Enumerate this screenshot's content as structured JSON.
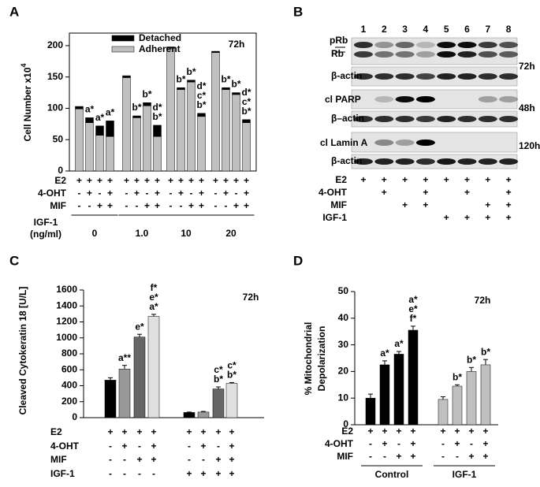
{
  "chart_data": [
    {
      "panel": "A",
      "type": "stacked-bar",
      "time": "72h",
      "y_label": "Cell Number x10",
      "y_label_sup": "4",
      "ylim": [
        0,
        220
      ],
      "yticks": [
        0,
        50,
        100,
        150,
        200
      ],
      "series": [
        {
          "name": "Detached",
          "color": "#000000",
          "values": [
            4,
            8,
            15,
            25,
            3,
            3,
            5,
            18,
            2,
            3,
            3,
            5,
            2,
            3,
            3,
            5
          ]
        },
        {
          "name": "Adherent",
          "color": "#c0c0c0",
          "values": [
            99,
            77,
            57,
            55,
            149,
            85,
            104,
            55,
            196,
            130,
            142,
            87,
            189,
            130,
            122,
            77
          ]
        }
      ],
      "bar_labels": [
        null,
        [
          "a*"
        ],
        [
          "a*"
        ],
        [
          "a*"
        ],
        null,
        [
          "b*"
        ],
        [
          "b*"
        ],
        [
          "d*",
          "b*"
        ],
        null,
        [
          "b*"
        ],
        [
          "b*"
        ],
        [
          "d*",
          "c*",
          "b*"
        ],
        null,
        [
          "b*"
        ],
        [
          "b*"
        ],
        [
          "d*",
          "c*",
          "b*"
        ]
      ],
      "treatments": [
        {
          "name": "E2",
          "values": [
            "+",
            "+",
            "+",
            "+",
            "+",
            "+",
            "+",
            "+",
            "+",
            "+",
            "+",
            "+",
            "+",
            "+",
            "+",
            "+"
          ]
        },
        {
          "name": "4-OHT",
          "values": [
            "-",
            "+",
            "-",
            "+",
            "-",
            "+",
            "-",
            "+",
            "-",
            "+",
            "-",
            "+",
            "-",
            "+",
            "-",
            "+"
          ]
        },
        {
          "name": "MIF",
          "values": [
            "-",
            "-",
            "+",
            "+",
            "-",
            "-",
            "+",
            "+",
            "-",
            "-",
            "+",
            "+",
            "-",
            "-",
            "+",
            "+"
          ]
        }
      ],
      "group_title": [
        "IGF-1",
        "(ng/ml)"
      ],
      "groups": [
        "0",
        "1.0",
        "10",
        "20"
      ]
    },
    {
      "panel": "C",
      "type": "bar",
      "time": "72h",
      "y_label": "Cleaved Cytokeratin 18 [U/L]",
      "ylim": [
        0,
        1600
      ],
      "yticks": [
        0,
        200,
        400,
        600,
        800,
        1000,
        1200,
        1400,
        1600
      ],
      "values": [
        470,
        610,
        1010,
        1270,
        65,
        70,
        360,
        430
      ],
      "errors": [
        30,
        45,
        35,
        25,
        5,
        8,
        25,
        10
      ],
      "colors": [
        "#000000",
        "#999999",
        "#666666",
        "#e0e0e0",
        "#000000",
        "#999999",
        "#666666",
        "#e0e0e0"
      ],
      "bar_labels": [
        null,
        [
          "a**"
        ],
        [
          "e*"
        ],
        [
          "f*",
          "e*",
          "a*"
        ],
        null,
        null,
        [
          "c*",
          "b*"
        ],
        [
          "c*",
          "b*"
        ]
      ],
      "treatments": [
        {
          "name": "E2",
          "values": [
            "+",
            "+",
            "+",
            "+",
            "+",
            "+",
            "+",
            "+"
          ]
        },
        {
          "name": "4-OHT",
          "values": [
            "-",
            "+",
            "-",
            "+",
            "-",
            "+",
            "-",
            "+"
          ]
        },
        {
          "name": "MIF",
          "values": [
            "-",
            "-",
            "+",
            "+",
            "-",
            "-",
            "+",
            "+"
          ]
        },
        {
          "name": "IGF-1",
          "values": [
            "-",
            "-",
            "-",
            "-",
            "+",
            "+",
            "+",
            "+"
          ]
        }
      ]
    },
    {
      "panel": "D",
      "type": "bar",
      "time": "72h",
      "y_label": [
        "% Mitochondrial",
        "Depolarization"
      ],
      "ylim": [
        0,
        50
      ],
      "yticks": [
        0,
        10,
        20,
        30,
        40,
        50
      ],
      "values": [
        10,
        22.5,
        26.5,
        35.5,
        9.5,
        14.5,
        20,
        22.5
      ],
      "errors": [
        1.5,
        1.5,
        1,
        1.5,
        1,
        0.5,
        1.5,
        2
      ],
      "colors": [
        "#000000",
        "#000000",
        "#000000",
        "#000000",
        "#c0c0c0",
        "#c0c0c0",
        "#c0c0c0",
        "#c0c0c0"
      ],
      "bar_labels": [
        null,
        [
          "a*"
        ],
        [
          "a*"
        ],
        [
          "a*",
          "e*",
          "f*"
        ],
        null,
        [
          "b*"
        ],
        [
          "b*"
        ],
        [
          "b*"
        ]
      ],
      "treatments": [
        {
          "name": "E2",
          "values": [
            "+",
            "+",
            "+",
            "+",
            "+",
            "+",
            "+",
            "+"
          ]
        },
        {
          "name": "4-OHT",
          "values": [
            "-",
            "+",
            "-",
            "+",
            "-",
            "+",
            "-",
            "+"
          ]
        },
        {
          "name": "MIF",
          "values": [
            "-",
            "-",
            "+",
            "+",
            "-",
            "-",
            "+",
            "+"
          ]
        }
      ],
      "groups": [
        "Control",
        "IGF-1"
      ]
    }
  ],
  "blot": {
    "panel": "B",
    "lanes": [
      "1",
      "2",
      "3",
      "4",
      "5",
      "6",
      "7",
      "8"
    ],
    "labels": [
      "pRb",
      "Rb",
      "β-actin",
      "cl PARP",
      "β–actin",
      "cl Lamin A",
      "β-actin"
    ],
    "times": [
      "72h",
      "48h",
      "120h"
    ],
    "treatments": [
      {
        "name": "E2",
        "values": [
          "+",
          "+",
          "+",
          "+",
          "+",
          "+",
          "+",
          "+"
        ]
      },
      {
        "name": "4-OHT",
        "values": [
          null,
          "+",
          null,
          "+",
          null,
          "+",
          null,
          "+"
        ]
      },
      {
        "name": "MIF",
        "values": [
          null,
          null,
          "+",
          "+",
          null,
          null,
          "+",
          "+"
        ]
      },
      {
        "name": "IGF-1",
        "values": [
          null,
          null,
          null,
          null,
          "+",
          "+",
          "+",
          "+"
        ]
      }
    ]
  }
}
